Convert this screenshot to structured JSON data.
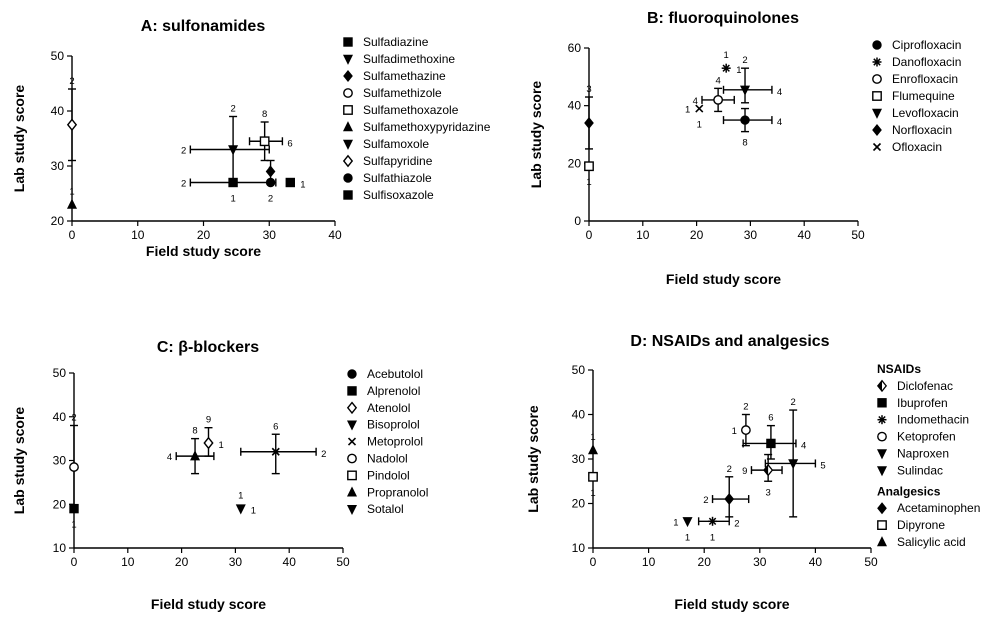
{
  "chart_data": [
    {
      "id": "A",
      "type": "scatter",
      "title": "A: sulfonamides",
      "xlabel": "Field study score",
      "ylabel": "Lab study score",
      "xlim": [
        0,
        40
      ],
      "ylim": [
        20,
        50
      ],
      "xticks": [
        0,
        10,
        20,
        30,
        40
      ],
      "yticks": [
        20,
        30,
        40,
        50
      ],
      "grid": false,
      "legend_position": "right",
      "series": [
        {
          "name": "Sulfadiazine",
          "marker": "square",
          "points": [
            {
              "x": 24.5,
              "y": 27,
              "xerr": [
                18,
                31
              ],
              "label_left": "2",
              "label_below": "1"
            }
          ]
        },
        {
          "name": "Sulfadimethoxine",
          "marker": "triangle-down",
          "points": [
            {
              "x": 24.5,
              "y": 33,
              "xerr": [
                18,
                30
              ],
              "yerr": [
                27,
                39
              ],
              "label_left": "2",
              "label_above": "2"
            }
          ]
        },
        {
          "name": "Sulfamethazine",
          "marker": "diamond",
          "points": [
            {
              "x": 30.2,
              "y": 29,
              "yerr": [
                27,
                31
              ]
            }
          ]
        },
        {
          "name": "Sulfamethizole",
          "marker": "circle-open",
          "points": []
        },
        {
          "name": "Sulfamethoxazole",
          "marker": "square-open",
          "points": [
            {
              "x": 29.3,
              "y": 34.5,
              "xerr": [
                27,
                32
              ],
              "yerr": [
                31,
                38
              ],
              "label_above": "8",
              "label_right": "6"
            }
          ]
        },
        {
          "name": "Sulfamethoxypyridazine",
          "marker": "triangle-up",
          "points": [
            {
              "x": 0,
              "y": 23,
              "label_above": "1"
            }
          ]
        },
        {
          "name": "Sulfamoxole",
          "marker": "triangle-down",
          "points": []
        },
        {
          "name": "Sulfapyridine",
          "marker": "diamond-open",
          "points": [
            {
              "x": 0,
              "y": 37.5,
              "yerr": [
                31,
                44
              ],
              "label_above": "2"
            }
          ]
        },
        {
          "name": "Sulfathiazole",
          "marker": "circle",
          "points": [
            {
              "x": 30.2,
              "y": 27,
              "label_above": "1",
              "label_below": "2"
            }
          ]
        },
        {
          "name": "Sulfisoxazole",
          "marker": "square",
          "points": [
            {
              "x": 33.2,
              "y": 27,
              "label_right": "1"
            }
          ]
        }
      ]
    },
    {
      "id": "B",
      "type": "scatter",
      "title": "B: fluoroquinolones",
      "xlabel": "Field study score",
      "ylabel": "Lab study score",
      "xlim": [
        0,
        50
      ],
      "ylim": [
        0,
        60
      ],
      "xticks": [
        0,
        10,
        20,
        30,
        40,
        50
      ],
      "yticks": [
        0,
        20,
        40,
        60
      ],
      "grid": false,
      "legend_position": "right",
      "series": [
        {
          "name": "Ciprofloxacin",
          "marker": "circle",
          "points": [
            {
              "x": 29,
              "y": 35,
              "xerr": [
                25,
                34
              ],
              "yerr": [
                31,
                39
              ],
              "label_right": "4",
              "label_below": "8"
            }
          ]
        },
        {
          "name": "Danofloxacin",
          "marker": "asterisk",
          "points": [
            {
              "x": 25.5,
              "y": 53,
              "label_above": "1",
              "label_right": "1"
            }
          ]
        },
        {
          "name": "Enrofloxacin",
          "marker": "circle-open",
          "points": [
            {
              "x": 24,
              "y": 42,
              "xerr": [
                21,
                27
              ],
              "yerr": [
                38,
                46
              ],
              "label_left": "4",
              "label_above": "4"
            }
          ]
        },
        {
          "name": "Flumequine",
          "marker": "square-open",
          "points": [
            {
              "x": 0,
              "y": 19,
              "label_below": "1"
            }
          ]
        },
        {
          "name": "Levofloxacin",
          "marker": "triangle-down",
          "points": [
            {
              "x": 29,
              "y": 45.5,
              "xerr": [
                25,
                34
              ],
              "yerr": [
                41,
                53
              ],
              "label_above": "2",
              "label_right": "4"
            }
          ]
        },
        {
          "name": "Norfloxacin",
          "marker": "diamond",
          "points": [
            {
              "x": 0,
              "y": 34,
              "yerr": [
                25,
                43
              ],
              "label_above": "3"
            }
          ]
        },
        {
          "name": "Ofloxacin",
          "marker": "cross",
          "points": [
            {
              "x": 20.5,
              "y": 39,
              "label_left": "1",
              "label_below": "1"
            }
          ]
        }
      ]
    },
    {
      "id": "C",
      "type": "scatter",
      "title": "C: β-blockers",
      "xlabel": "Field study score",
      "ylabel": "Lab study score",
      "xlim": [
        0,
        50
      ],
      "ylim": [
        10,
        50
      ],
      "xticks": [
        0,
        10,
        20,
        30,
        40,
        50
      ],
      "yticks": [
        10,
        20,
        30,
        40,
        50
      ],
      "grid": false,
      "legend_position": "right",
      "series": [
        {
          "name": "Acebutolol",
          "marker": "circle",
          "points": []
        },
        {
          "name": "Alprenolol",
          "marker": "square",
          "points": [
            {
              "x": 0,
              "y": 19,
              "label_below": "1"
            }
          ]
        },
        {
          "name": "Atenolol",
          "marker": "diamond-open",
          "points": [
            {
              "x": 25,
              "y": 34,
              "yerr": [
                31,
                37.5
              ],
              "label_above": "9",
              "label_right": "1"
            }
          ]
        },
        {
          "name": "Bisoprolol",
          "marker": "triangle-down",
          "points": []
        },
        {
          "name": "Metoprolol",
          "marker": "cross",
          "points": [
            {
              "x": 37.5,
              "y": 32,
              "xerr": [
                31,
                45
              ],
              "yerr": [
                27,
                36
              ],
              "label_above": "6",
              "label_right": "2"
            }
          ]
        },
        {
          "name": "Nadolol",
          "marker": "circle-open",
          "points": [
            {
              "x": 0,
              "y": 28.5,
              "yerr": [
                19,
                38
              ],
              "label_above": "2"
            }
          ]
        },
        {
          "name": "Pindolol",
          "marker": "square-open",
          "points": []
        },
        {
          "name": "Propranolol",
          "marker": "triangle-up",
          "points": [
            {
              "x": 22.5,
              "y": 31,
              "xerr": [
                19,
                26
              ],
              "yerr": [
                27,
                35
              ],
              "label_left": "4",
              "label_above": "8"
            }
          ]
        },
        {
          "name": "Sotalol",
          "marker": "triangle-down",
          "points": [
            {
              "x": 31,
              "y": 19,
              "label_above": "1",
              "label_right": "1"
            }
          ]
        }
      ]
    },
    {
      "id": "D",
      "type": "scatter",
      "title": "D: NSAIDs and analgesics",
      "xlabel": "Field study score",
      "ylabel": "Lab study score",
      "xlim": [
        0,
        50
      ],
      "ylim": [
        10,
        50
      ],
      "xticks": [
        0,
        10,
        20,
        30,
        40,
        50
      ],
      "yticks": [
        10,
        20,
        30,
        40,
        50
      ],
      "grid": false,
      "legend_position": "right",
      "legend_groups": [
        "NSAIDs",
        "Analgesics"
      ],
      "series": [
        {
          "name": "Diclofenac",
          "group": "NSAIDs",
          "marker": "diamond-half",
          "points": [
            {
              "x": 31.5,
              "y": 27.5,
              "xerr": [
                28.5,
                34
              ],
              "yerr": [
                25,
                31
              ],
              "label_left": "9",
              "label_below": "3"
            }
          ]
        },
        {
          "name": "Ibuprofen",
          "group": "NSAIDs",
          "marker": "square",
          "points": [
            {
              "x": 32,
              "y": 33.5,
              "xerr": [
                27,
                36.5
              ],
              "yerr": [
                30,
                37.5
              ],
              "label_above": "6",
              "label_right": "4"
            }
          ]
        },
        {
          "name": "Indomethacin",
          "group": "NSAIDs",
          "marker": "asterisk",
          "points": [
            {
              "x": 21.5,
              "y": 16,
              "xerr": [
                19,
                24.5
              ],
              "label_right": "2",
              "label_below": "1"
            }
          ]
        },
        {
          "name": "Ketoprofen",
          "group": "NSAIDs",
          "marker": "circle-open",
          "points": [
            {
              "x": 27.5,
              "y": 36.5,
              "yerr": [
                33,
                40
              ],
              "label_left": "1",
              "label_above": "2"
            }
          ]
        },
        {
          "name": "Naproxen",
          "group": "NSAIDs",
          "marker": "triangle-down",
          "points": [
            {
              "x": 36,
              "y": 29,
              "xerr": [
                31,
                40
              ],
              "yerr": [
                17,
                41
              ],
              "label_above": "2",
              "label_right": "5"
            }
          ]
        },
        {
          "name": "Sulindac",
          "group": "NSAIDs",
          "marker": "triangle-down",
          "points": [
            {
              "x": 17,
              "y": 16,
              "label_left": "1",
              "label_below": "1"
            }
          ]
        },
        {
          "name": "Acetaminophen",
          "group": "Analgesics",
          "marker": "diamond",
          "points": [
            {
              "x": 24.5,
              "y": 21,
              "xerr": [
                21.5,
                28
              ],
              "yerr": [
                17,
                26
              ],
              "label_left": "2",
              "label_above": "2"
            }
          ]
        },
        {
          "name": "Dipyrone",
          "group": "Analgesics",
          "marker": "square-open",
          "points": [
            {
              "x": 0,
              "y": 26,
              "label_below": "1"
            }
          ]
        },
        {
          "name": "Salicylic acid",
          "group": "Analgesics",
          "marker": "triangle-up",
          "points": [
            {
              "x": 0,
              "y": 32,
              "label_above": "1"
            }
          ]
        }
      ]
    }
  ]
}
